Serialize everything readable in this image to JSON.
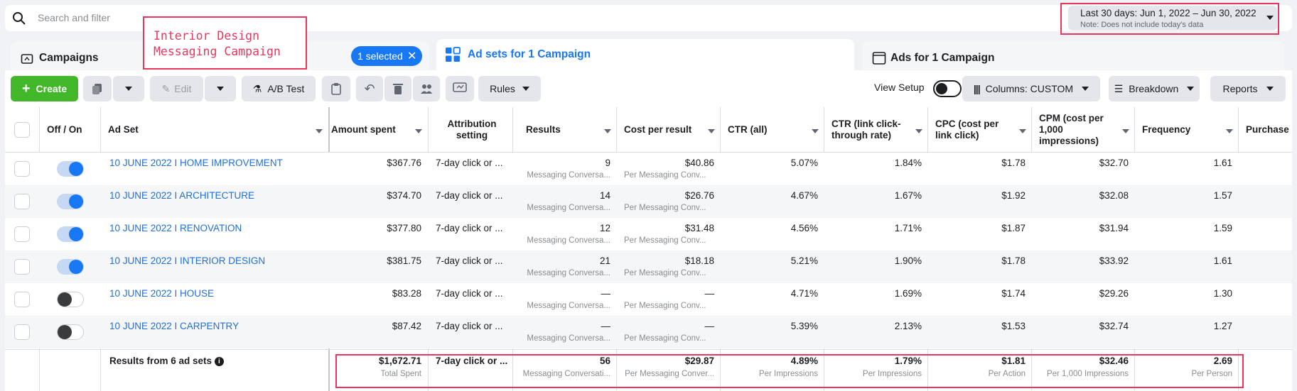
{
  "search": {
    "placeholder": "Search and filter"
  },
  "date_range": {
    "label": "Last 30 days: Jun 1, 2022 – Jun 30, 2022",
    "note": "Note: Does not include today's data"
  },
  "tabs": {
    "campaigns": "Campaigns",
    "selected_pill": "1 selected",
    "adsets": "Ad sets for 1 Campaign",
    "ads": "Ads for 1 Campaign"
  },
  "annotation": "Interior Design\nMessaging Campaign",
  "toolbar": {
    "create": "Create",
    "edit": "Edit",
    "ab_test": "A/B Test",
    "rules": "Rules",
    "view_setup": "View Setup",
    "columns": "Columns: CUSTOM",
    "breakdown": "Breakdown",
    "reports": "Reports"
  },
  "columns": {
    "off_on": "Off / On",
    "ad_set": "Ad Set",
    "amount_spent": "Amount spent",
    "attribution": "Attribution setting",
    "results": "Results",
    "cost_per_result": "Cost per result",
    "ctr_all": "CTR (all)",
    "ctr_link": "CTR (link click-through rate)",
    "cpc": "CPC (cost per link click)",
    "cpm": "CPM (cost per 1,000 impressions)",
    "frequency": "Frequency",
    "purchase": "Purchase"
  },
  "rows": [
    {
      "on": true,
      "name": "10 JUNE 2022 I HOME IMPROVEMENT",
      "spent": "$367.76",
      "attr": "7-day click or ...",
      "results": "9",
      "results_sub": "Messaging Conversa...",
      "cpr": "$40.86",
      "cpr_sub": "Per Messaging Conv...",
      "ctr_all": "5.07%",
      "ctr_link": "1.84%",
      "cpc": "$1.78",
      "cpm": "$32.70",
      "freq": "1.61"
    },
    {
      "on": true,
      "name": "10 JUNE 2022 I ARCHITECTURE",
      "spent": "$374.70",
      "attr": "7-day click or ...",
      "results": "14",
      "results_sub": "Messaging Conversa...",
      "cpr": "$26.76",
      "cpr_sub": "Per Messaging Conv...",
      "ctr_all": "4.67%",
      "ctr_link": "1.67%",
      "cpc": "$1.92",
      "cpm": "$32.08",
      "freq": "1.57"
    },
    {
      "on": true,
      "name": "10 JUNE 2022 I RENOVATION",
      "spent": "$377.80",
      "attr": "7-day click or ...",
      "results": "12",
      "results_sub": "Messaging Conversa...",
      "cpr": "$31.48",
      "cpr_sub": "Per Messaging Conv...",
      "ctr_all": "4.56%",
      "ctr_link": "1.71%",
      "cpc": "$1.87",
      "cpm": "$31.94",
      "freq": "1.59"
    },
    {
      "on": true,
      "name": "10 JUNE 2022 I INTERIOR DESIGN",
      "spent": "$381.75",
      "attr": "7-day click or ...",
      "results": "21",
      "results_sub": "Messaging Conversa...",
      "cpr": "$18.18",
      "cpr_sub": "Per Messaging Conv...",
      "ctr_all": "5.21%",
      "ctr_link": "1.90%",
      "cpc": "$1.78",
      "cpm": "$33.92",
      "freq": "1.61"
    },
    {
      "on": false,
      "name": "10 JUNE 2022 I HOUSE",
      "spent": "$83.28",
      "attr": "7-day click or ...",
      "results": "—",
      "results_sub": "Messaging Conversa...",
      "cpr": "—",
      "cpr_sub": "Per Messaging Conv...",
      "ctr_all": "4.71%",
      "ctr_link": "1.69%",
      "cpc": "$1.74",
      "cpm": "$29.26",
      "freq": "1.30"
    },
    {
      "on": false,
      "name": "10 JUNE 2022 I CARPENTRY",
      "spent": "$87.42",
      "attr": "7-day click or ...",
      "results": "—",
      "results_sub": "Messaging Conversa...",
      "cpr": "—",
      "cpr_sub": "Per Messaging Conv...",
      "ctr_all": "5.39%",
      "ctr_link": "2.13%",
      "cpc": "$1.53",
      "cpm": "$32.74",
      "freq": "1.27"
    }
  ],
  "totals": {
    "label": "Results from 6 ad sets",
    "spent": "$1,672.71",
    "spent_sub": "Total Spent",
    "attr": "7-day click or ...",
    "results": "56",
    "results_sub": "Messaging Conversati...",
    "cpr": "$29.87",
    "cpr_sub": "Per Messaging Conver...",
    "ctr_all": "4.89%",
    "ctr_all_sub": "Per Impressions",
    "ctr_link": "1.79%",
    "ctr_link_sub": "Per Impressions",
    "cpc": "$1.81",
    "cpc_sub": "Per Action",
    "cpm": "$32.46",
    "cpm_sub": "Per 1,000 Impressions",
    "freq": "2.69",
    "freq_sub": "Per Person"
  },
  "colors": {
    "accent": "#1877f2",
    "create_green": "#42b72a",
    "highlight": "#e8365d",
    "link": "#216fdb"
  }
}
